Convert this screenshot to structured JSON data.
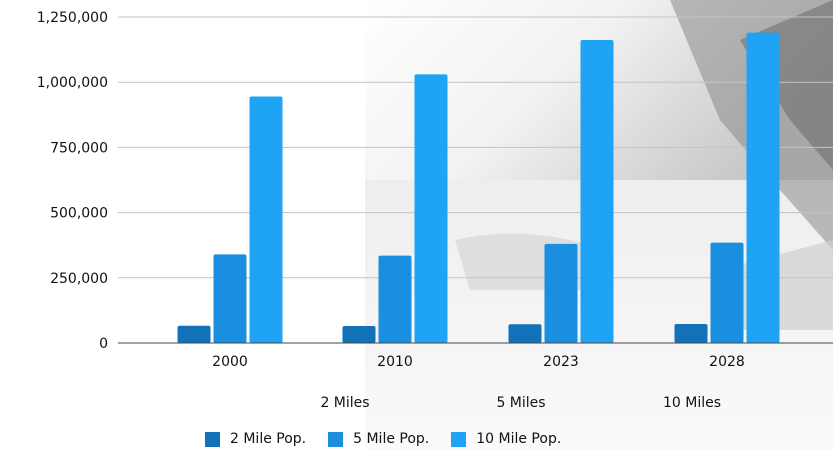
{
  "chart_data": {
    "type": "bar",
    "categories": [
      "2000",
      "2010",
      "2023",
      "2028"
    ],
    "series": [
      {
        "name": "2 Mile Pop.",
        "values": [
          66000,
          65000,
          72000,
          73000
        ]
      },
      {
        "name": "5 Mile Pop.",
        "values": [
          340000,
          335000,
          380000,
          385000
        ]
      },
      {
        "name": "10 Mile Pop.",
        "values": [
          945000,
          1030000,
          1162000,
          1190000
        ]
      }
    ],
    "ylim": [
      0,
      1250000
    ],
    "yticks": [
      0,
      250000,
      500000,
      750000,
      1000000,
      1250000
    ],
    "ytick_labels": [
      "0",
      "250,000",
      "500,000",
      "750,000",
      "1,000,000",
      "1,250,000"
    ],
    "grid": true,
    "legend_placement": "bottom",
    "colors": [
      "#1172b9",
      "#1a8fdf",
      "#1ea3f5"
    ]
  },
  "radius_labels": [
    "2 Miles",
    "5 Miles",
    "10 Miles"
  ]
}
